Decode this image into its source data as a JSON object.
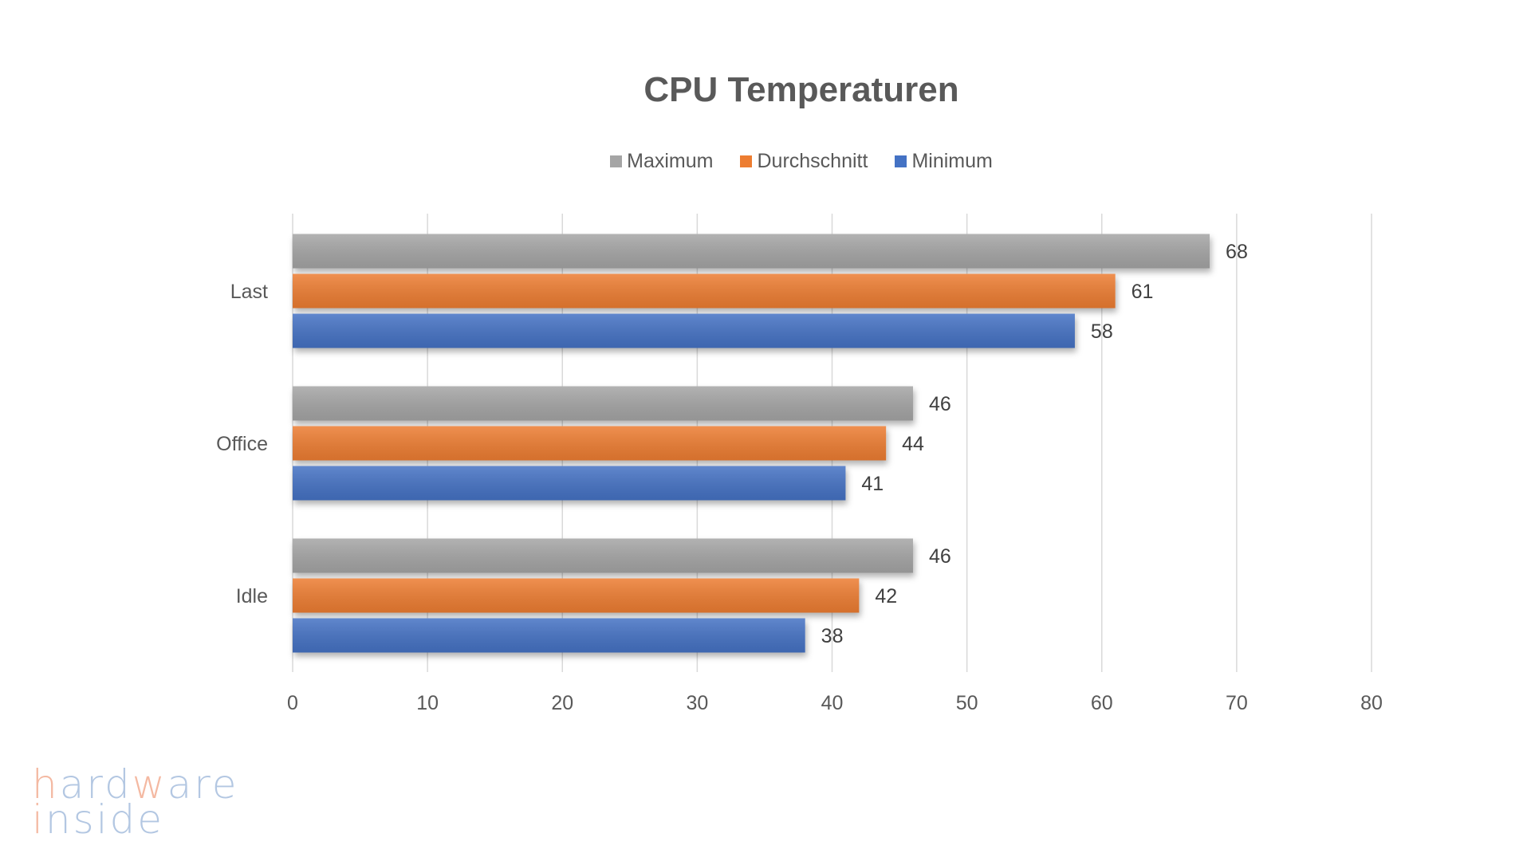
{
  "chart_data": {
    "type": "bar",
    "orientation": "horizontal",
    "title": "CPU Temperaturen",
    "categories": [
      "Last",
      "Office",
      "Idle"
    ],
    "series": [
      {
        "name": "Maximum",
        "color": "#a5a5a5",
        "values": [
          68,
          46,
          46
        ]
      },
      {
        "name": "Durchschnitt",
        "color": "#ed7d31",
        "values": [
          61,
          44,
          42
        ]
      },
      {
        "name": "Minimum",
        "color": "#4472c4",
        "values": [
          58,
          41,
          38
        ]
      }
    ],
    "xlim": [
      0,
      80
    ],
    "xticks": [
      0,
      10,
      20,
      30,
      40,
      50,
      60,
      70,
      80
    ],
    "xlabel": "",
    "ylabel": "",
    "grid": true,
    "legend": "top-center"
  },
  "watermark": {
    "line1": "hardware",
    "line2": "inside"
  }
}
